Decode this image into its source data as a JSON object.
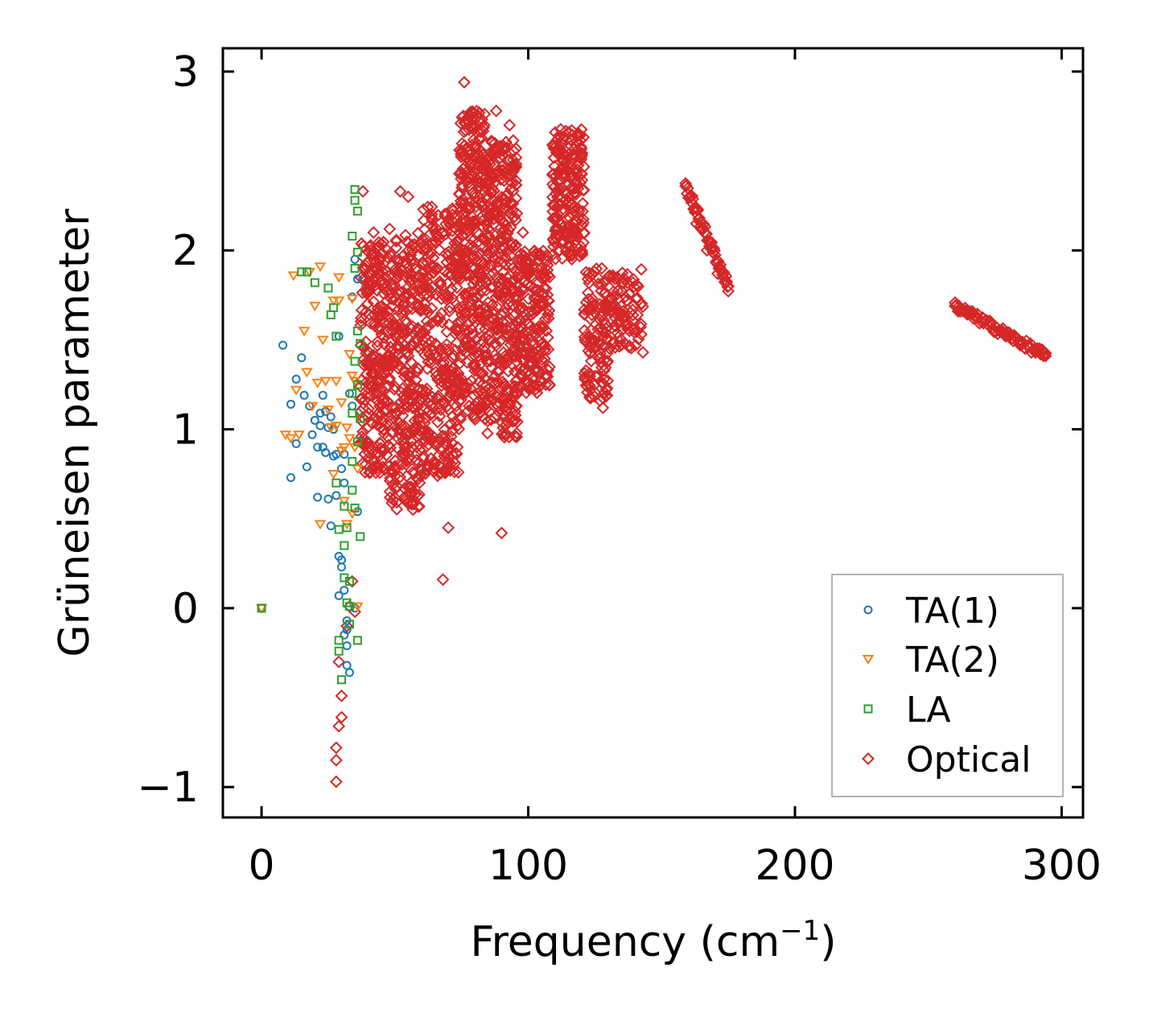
{
  "chart_data": {
    "type": "scatter",
    "xlabel": "Frequency (cm",
    "xlabel_sup": "−1",
    "xlabel_close": ")",
    "ylabel": "Grüneisen parameter",
    "xlim": [
      -14.5,
      308
    ],
    "ylim": [
      -1.17,
      3.13
    ],
    "xticks": [
      0,
      100,
      200,
      300
    ],
    "xtick_labels": [
      "0",
      "100",
      "200",
      "300"
    ],
    "yticks": [
      -1,
      0,
      1,
      2,
      3
    ],
    "ytick_labels": [
      "−1",
      "0",
      "1",
      "2",
      "3"
    ],
    "grid": false,
    "legend_position": "lower-right",
    "series": [
      {
        "name": "TA(1)",
        "marker": "circle",
        "color": "#1f77b4",
        "points": [
          [
            0,
            0
          ],
          [
            8,
            1.47
          ],
          [
            11,
            1.14
          ],
          [
            11,
            0.73
          ],
          [
            13,
            0.92
          ],
          [
            13,
            1.28
          ],
          [
            15,
            1.4
          ],
          [
            16,
            1.19
          ],
          [
            17,
            0.79
          ],
          [
            18,
            1.13
          ],
          [
            19,
            0.97
          ],
          [
            20,
            1.05
          ],
          [
            21,
            0.9
          ],
          [
            21,
            0.62
          ],
          [
            22,
            1.09
          ],
          [
            22,
            1.02
          ],
          [
            23,
            0.9
          ],
          [
            23,
            1.19
          ],
          [
            24,
            1.1
          ],
          [
            24,
            0.87
          ],
          [
            25,
            1.01
          ],
          [
            25,
            0.61
          ],
          [
            26,
            0.46
          ],
          [
            26,
            1.07
          ],
          [
            27,
            0.85
          ],
          [
            27,
            1.0
          ],
          [
            28,
            0.86
          ],
          [
            28,
            0.63
          ],
          [
            29,
            0.29
          ],
          [
            29,
            1.52
          ],
          [
            30,
            0.78
          ],
          [
            30,
            0.27
          ],
          [
            30,
            0.23
          ],
          [
            31,
            0.86
          ],
          [
            31,
            0.7
          ],
          [
            31,
            0.1
          ],
          [
            32,
            -0.07
          ],
          [
            32,
            -0.12
          ],
          [
            32,
            -0.32
          ],
          [
            33,
            -0.36
          ],
          [
            33,
            1.2
          ],
          [
            34,
            1.13
          ],
          [
            34,
            1.74
          ],
          [
            35,
            1.95
          ],
          [
            35,
            0.0
          ],
          [
            36,
            1.84
          ],
          [
            36,
            0.54
          ],
          [
            29,
            0.07
          ],
          [
            31,
            -0.15
          ],
          [
            32,
            -0.21
          ]
        ]
      },
      {
        "name": "TA(2)",
        "marker": "triangle-down",
        "color": "#ff7f0e",
        "points": [
          [
            0,
            0
          ],
          [
            9,
            0.97
          ],
          [
            11,
            0.95
          ],
          [
            12,
            1.86
          ],
          [
            13,
            1.22
          ],
          [
            14,
            0.97
          ],
          [
            16,
            1.55
          ],
          [
            17,
            1.32
          ],
          [
            18,
            1.88
          ],
          [
            19,
            1.13
          ],
          [
            20,
            1.69
          ],
          [
            21,
            1.26
          ],
          [
            22,
            1.91
          ],
          [
            22,
            0.47
          ],
          [
            23,
            1.5
          ],
          [
            24,
            1.27
          ],
          [
            25,
            1.11
          ],
          [
            26,
            1.01
          ],
          [
            27,
            1.72
          ],
          [
            27,
            0.75
          ],
          [
            28,
            1.27
          ],
          [
            28,
            1.02
          ],
          [
            29,
            1.85
          ],
          [
            29,
            1.72
          ],
          [
            30,
            1.15
          ],
          [
            30,
            0.88
          ],
          [
            31,
            0.9
          ],
          [
            31,
            0.6
          ],
          [
            32,
            1.01
          ],
          [
            32,
            0.47
          ],
          [
            33,
            1.42
          ],
          [
            33,
            0.95
          ],
          [
            34,
            1.73
          ],
          [
            34,
            0.53
          ],
          [
            35,
            1.27
          ],
          [
            35,
            0.9
          ],
          [
            36,
            0.01
          ],
          [
            36,
            0.78
          ],
          [
            34,
            1.3
          ]
        ]
      },
      {
        "name": "LA",
        "marker": "square",
        "color": "#2ca02c",
        "points": [
          [
            0,
            0
          ],
          [
            15,
            1.88
          ],
          [
            17,
            1.88
          ],
          [
            20,
            1.82
          ],
          [
            25,
            1.79
          ],
          [
            26,
            1.64
          ],
          [
            27,
            1.68
          ],
          [
            28,
            1.52
          ],
          [
            28,
            0.7
          ],
          [
            29,
            0.44
          ],
          [
            29,
            -0.18
          ],
          [
            29,
            -0.24
          ],
          [
            30,
            -0.4
          ],
          [
            31,
            0.57
          ],
          [
            31,
            0.35
          ],
          [
            31,
            0.17
          ],
          [
            32,
            0.45
          ],
          [
            32,
            0.03
          ],
          [
            33,
            0.15
          ],
          [
            33,
            -0.09
          ],
          [
            34,
            1.09
          ],
          [
            34,
            0.82
          ],
          [
            34,
            2.08
          ],
          [
            35,
            2.34
          ],
          [
            35,
            2.28
          ],
          [
            35,
            1.9
          ],
          [
            36,
            2.22
          ],
          [
            36,
            1.99
          ],
          [
            36,
            1.25
          ],
          [
            36,
            1.55
          ],
          [
            37,
            0.4
          ],
          [
            36,
            -0.18
          ],
          [
            35,
            0.56
          ],
          [
            34,
            0.66
          ],
          [
            35,
            1.38
          ],
          [
            36,
            0.93
          ],
          [
            37,
            1.48
          ],
          [
            37,
            1.06
          ],
          [
            33,
            0.01
          ],
          [
            34,
            1.2
          ]
        ]
      },
      {
        "name": "Optical",
        "marker": "diamond",
        "color": "#d62728",
        "points": [
          [
            28,
            -0.97
          ],
          [
            28,
            -0.85
          ],
          [
            28,
            -0.78
          ],
          [
            29,
            -0.66
          ],
          [
            30,
            -0.61
          ],
          [
            30,
            -0.49
          ],
          [
            29,
            -0.3
          ],
          [
            32,
            -0.1
          ],
          [
            33,
            0.01
          ],
          [
            34,
            0.15
          ],
          [
            35,
            -0.02
          ],
          [
            38,
            2.33
          ],
          [
            42,
            2.1
          ],
          [
            45,
            1.53
          ],
          [
            48,
            2.12
          ],
          [
            52,
            2.33
          ],
          [
            55,
            2.3
          ],
          [
            58,
            2.02
          ],
          [
            62,
            1.85
          ],
          [
            66,
            0.74
          ],
          [
            68,
            0.16
          ],
          [
            70,
            0.45
          ],
          [
            76,
            2.94
          ],
          [
            78,
            2.75
          ],
          [
            82,
            2.62
          ],
          [
            86,
            2.32
          ],
          [
            88,
            2.78
          ],
          [
            90,
            0.42
          ],
          [
            93,
            2.7
          ],
          [
            98,
            2.1
          ],
          [
            102,
            1.9
          ],
          [
            108,
            1.25
          ],
          [
            112,
            2.45
          ],
          [
            116,
            2.62
          ],
          [
            120,
            2.0
          ],
          [
            124,
            1.73
          ],
          [
            128,
            1.12
          ],
          [
            132,
            1.7
          ],
          [
            138,
            1.55
          ],
          [
            143,
            1.43
          ],
          [
            159,
            2.36
          ],
          [
            163,
            2.15
          ],
          [
            167,
            2.0
          ],
          [
            171,
            1.87
          ],
          [
            175,
            1.8
          ],
          [
            260,
            1.69
          ],
          [
            265,
            1.65
          ],
          [
            270,
            1.6
          ],
          [
            275,
            1.55
          ],
          [
            280,
            1.52
          ],
          [
            285,
            1.48
          ],
          [
            290,
            1.44
          ],
          [
            294,
            1.41
          ]
        ]
      }
    ]
  }
}
